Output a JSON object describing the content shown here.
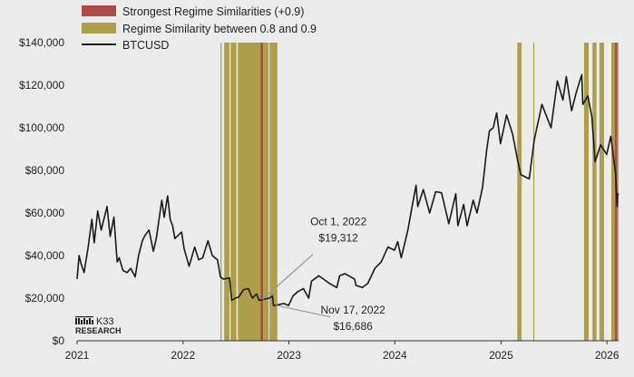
{
  "chart_data": {
    "type": "line",
    "title": "",
    "xlabel": "",
    "ylabel": "",
    "x_range": [
      "2021-01-01",
      "2026-02-10"
    ],
    "ylim": [
      0,
      140000
    ],
    "x_ticks": [
      {
        "date": "2021-01-01",
        "label": "2021"
      },
      {
        "date": "2022-01-01",
        "label": "2022"
      },
      {
        "date": "2023-01-01",
        "label": "2023"
      },
      {
        "date": "2024-01-01",
        "label": "2024"
      },
      {
        "date": "2025-01-01",
        "label": "2025"
      },
      {
        "date": "2026-01-01",
        "label": "2026"
      }
    ],
    "y_ticks": [
      {
        "value": 0,
        "label": "$0"
      },
      {
        "value": 20000,
        "label": "$20,000"
      },
      {
        "value": 40000,
        "label": "$40,000"
      },
      {
        "value": 60000,
        "label": "$60,000"
      },
      {
        "value": 80000,
        "label": "$80,000"
      },
      {
        "value": 100000,
        "label": "$100,000"
      },
      {
        "value": 120000,
        "label": "$120,000"
      },
      {
        "value": 140000,
        "label": "$140,000"
      }
    ],
    "grid": false,
    "legend_position": "top-left",
    "legend": [
      {
        "label": "Strongest Regime Similarities (+0.9)",
        "kind": "swatch",
        "color": "#b04a48"
      },
      {
        "label": "Regime Similarity between 0.8 and 0.9",
        "kind": "swatch",
        "color": "#ad9f4a"
      },
      {
        "label": "BTCUSD",
        "kind": "line",
        "color": "#1a1a1a"
      }
    ],
    "series": [
      {
        "name": "BTCUSD",
        "color": "#1a1a1a",
        "points": [
          [
            "2021-01-01",
            29000
          ],
          [
            "2021-01-08",
            40000
          ],
          [
            "2021-01-15",
            36000
          ],
          [
            "2021-01-25",
            32000
          ],
          [
            "2021-02-08",
            44000
          ],
          [
            "2021-02-21",
            57000
          ],
          [
            "2021-03-01",
            46000
          ],
          [
            "2021-03-13",
            61000
          ],
          [
            "2021-03-25",
            52000
          ],
          [
            "2021-04-14",
            63000
          ],
          [
            "2021-04-25",
            49000
          ],
          [
            "2021-05-08",
            58000
          ],
          [
            "2021-05-19",
            37000
          ],
          [
            "2021-05-26",
            39000
          ],
          [
            "2021-06-08",
            33000
          ],
          [
            "2021-06-22",
            32000
          ],
          [
            "2021-07-05",
            34000
          ],
          [
            "2021-07-20",
            30000
          ],
          [
            "2021-08-01",
            40000
          ],
          [
            "2021-08-14",
            47000
          ],
          [
            "2021-08-23",
            49500
          ],
          [
            "2021-09-06",
            52000
          ],
          [
            "2021-09-21",
            42000
          ],
          [
            "2021-10-01",
            48000
          ],
          [
            "2021-10-20",
            66000
          ],
          [
            "2021-10-28",
            58000
          ],
          [
            "2021-11-09",
            68000
          ],
          [
            "2021-11-18",
            57000
          ],
          [
            "2021-11-26",
            54000
          ],
          [
            "2021-12-04",
            48000
          ],
          [
            "2021-12-27",
            51000
          ],
          [
            "2022-01-05",
            43000
          ],
          [
            "2022-01-22",
            35000
          ],
          [
            "2022-02-10",
            44000
          ],
          [
            "2022-02-24",
            38000
          ],
          [
            "2022-03-10",
            39000
          ],
          [
            "2022-03-28",
            47000
          ],
          [
            "2022-04-12",
            40000
          ],
          [
            "2022-04-30",
            38000
          ],
          [
            "2022-05-10",
            30000
          ],
          [
            "2022-05-20",
            29000
          ],
          [
            "2022-06-10",
            29500
          ],
          [
            "2022-06-18",
            19000
          ],
          [
            "2022-06-30",
            20000
          ],
          [
            "2022-07-12",
            20500
          ],
          [
            "2022-07-29",
            24000
          ],
          [
            "2022-08-14",
            24500
          ],
          [
            "2022-08-28",
            20000
          ],
          [
            "2022-09-12",
            22000
          ],
          [
            "2022-09-20",
            19000
          ],
          [
            "2022-10-01",
            19312
          ],
          [
            "2022-10-25",
            20000
          ],
          [
            "2022-11-05",
            21000
          ],
          [
            "2022-11-09",
            16500
          ],
          [
            "2022-11-17",
            16686
          ],
          [
            "2022-12-15",
            17500
          ],
          [
            "2022-12-31",
            16500
          ],
          [
            "2023-01-15",
            21000
          ],
          [
            "2023-01-31",
            23000
          ],
          [
            "2023-02-20",
            24500
          ],
          [
            "2023-03-10",
            20000
          ],
          [
            "2023-03-20",
            28000
          ],
          [
            "2023-04-14",
            30500
          ],
          [
            "2023-04-30",
            29000
          ],
          [
            "2023-05-20",
            27000
          ],
          [
            "2023-06-15",
            25000
          ],
          [
            "2023-06-25",
            30500
          ],
          [
            "2023-07-13",
            31500
          ],
          [
            "2023-08-15",
            29000
          ],
          [
            "2023-08-20",
            26000
          ],
          [
            "2023-09-11",
            25000
          ],
          [
            "2023-09-30",
            27000
          ],
          [
            "2023-10-24",
            34000
          ],
          [
            "2023-11-15",
            37000
          ],
          [
            "2023-12-08",
            44000
          ],
          [
            "2023-12-31",
            42500
          ],
          [
            "2024-01-11",
            46500
          ],
          [
            "2024-01-23",
            39000
          ],
          [
            "2024-02-15",
            52000
          ],
          [
            "2024-02-28",
            62000
          ],
          [
            "2024-03-14",
            73000
          ],
          [
            "2024-03-20",
            63000
          ],
          [
            "2024-04-08",
            71000
          ],
          [
            "2024-04-30",
            60000
          ],
          [
            "2024-05-21",
            70000
          ],
          [
            "2024-06-10",
            69500
          ],
          [
            "2024-07-05",
            55000
          ],
          [
            "2024-07-29",
            69000
          ],
          [
            "2024-08-05",
            54000
          ],
          [
            "2024-08-25",
            64000
          ],
          [
            "2024-09-06",
            54000
          ],
          [
            "2024-09-27",
            66000
          ],
          [
            "2024-10-10",
            60000
          ],
          [
            "2024-10-29",
            72000
          ],
          [
            "2024-11-13",
            90000
          ],
          [
            "2024-11-22",
            98500
          ],
          [
            "2024-12-05",
            100000
          ],
          [
            "2024-12-17",
            107000
          ],
          [
            "2024-12-30",
            92500
          ],
          [
            "2025-01-20",
            106000
          ],
          [
            "2025-02-10",
            97000
          ],
          [
            "2025-02-28",
            84000
          ],
          [
            "2025-03-10",
            78000
          ],
          [
            "2025-04-08",
            76000
          ],
          [
            "2025-04-25",
            94000
          ],
          [
            "2025-05-22",
            111000
          ],
          [
            "2025-06-22",
            100000
          ],
          [
            "2025-07-14",
            122000
          ],
          [
            "2025-08-02",
            113000
          ],
          [
            "2025-08-14",
            124000
          ],
          [
            "2025-09-01",
            108000
          ],
          [
            "2025-09-18",
            117000
          ],
          [
            "2025-10-06",
            125000
          ],
          [
            "2025-10-10",
            111000
          ],
          [
            "2025-10-27",
            115000
          ],
          [
            "2025-11-10",
            105000
          ],
          [
            "2025-11-21",
            84000
          ],
          [
            "2025-12-10",
            92000
          ],
          [
            "2025-12-31",
            87500
          ],
          [
            "2026-01-14",
            96000
          ],
          [
            "2026-01-20",
            90000
          ],
          [
            "2026-01-31",
            78000
          ],
          [
            "2026-02-05",
            63000
          ],
          [
            "2026-02-07",
            69000
          ],
          [
            "2026-02-10",
            68500
          ]
        ]
      }
    ],
    "bands": [
      {
        "start": "2022-05-10",
        "end": "2022-05-14",
        "strength": "mid"
      },
      {
        "start": "2022-05-23",
        "end": "2022-06-10",
        "strength": "mid"
      },
      {
        "start": "2022-06-14",
        "end": "2022-07-04",
        "strength": "mid"
      },
      {
        "start": "2022-07-09",
        "end": "2022-09-25",
        "strength": "mid"
      },
      {
        "start": "2022-09-25",
        "end": "2022-10-04",
        "strength": "strong"
      },
      {
        "start": "2022-10-04",
        "end": "2022-10-23",
        "strength": "mid"
      },
      {
        "start": "2022-10-26",
        "end": "2022-11-22",
        "strength": "mid"
      },
      {
        "start": "2025-02-26",
        "end": "2025-03-13",
        "strength": "mid"
      },
      {
        "start": "2025-04-22",
        "end": "2025-04-25",
        "strength": "mid"
      },
      {
        "start": "2025-10-14",
        "end": "2025-10-30",
        "strength": "mid"
      },
      {
        "start": "2025-11-12",
        "end": "2025-11-26",
        "strength": "mid"
      },
      {
        "start": "2025-12-06",
        "end": "2025-12-22",
        "strength": "mid"
      },
      {
        "start": "2026-01-16",
        "end": "2026-01-28",
        "strength": "mid"
      },
      {
        "start": "2026-01-28",
        "end": "2026-02-05",
        "strength": "strong"
      },
      {
        "start": "2026-02-05",
        "end": "2026-02-10",
        "strength": "mid"
      }
    ],
    "band_colors": {
      "strong": "#b04a48",
      "mid": "#ad9f4a"
    },
    "annotations": [
      {
        "date": "2022-10-01",
        "value": 19312,
        "lines": [
          "Oct 1, 2022",
          "$19,312"
        ],
        "placement": "upper-right"
      },
      {
        "date": "2022-11-17",
        "value": 16686,
        "lines": [
          "Nov 17, 2022",
          "$16,686"
        ],
        "placement": "lower-right"
      }
    ]
  },
  "branding": {
    "logo_text": "K33",
    "logo_subtext": "RESEARCH"
  }
}
